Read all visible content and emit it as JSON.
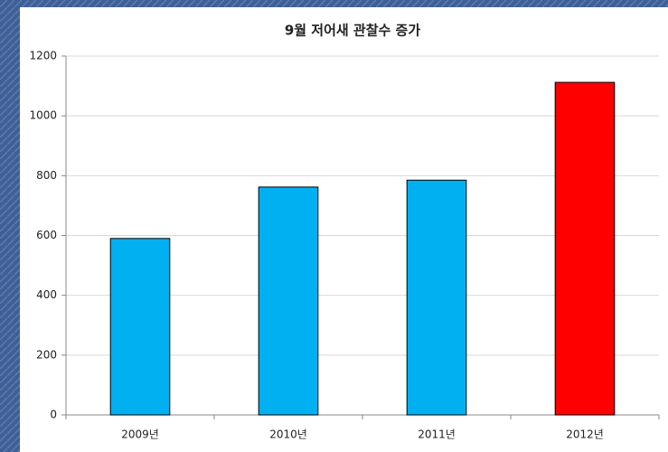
{
  "chart_data": {
    "type": "bar",
    "title": "9월 저어새 관찰수 증가",
    "categories": [
      "2009년",
      "2010년",
      "2011년",
      "2012년"
    ],
    "values": [
      590,
      762,
      785,
      1112
    ],
    "colors": [
      "#00b0f0",
      "#00b0f0",
      "#00b0f0",
      "#ff0000"
    ],
    "ylim": [
      0,
      1200
    ],
    "yticks": [
      0,
      200,
      400,
      600,
      800,
      1000,
      1200
    ],
    "grid": true
  }
}
